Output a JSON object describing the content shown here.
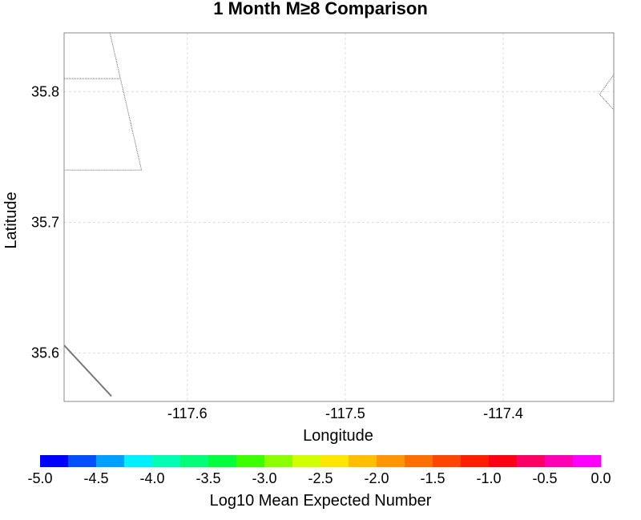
{
  "chart_data": {
    "type": "heatmap",
    "title": "1 Month M≥8 Comparison",
    "xlabel": "Longitude",
    "ylabel": "Latitude",
    "xlim": [
      -117.678,
      -117.33
    ],
    "ylim": [
      35.563,
      35.845
    ],
    "x_ticks": [
      -117.6,
      -117.5,
      -117.4
    ],
    "x_tick_labels": [
      "-117.6",
      "-117.5",
      "-117.4"
    ],
    "y_ticks": [
      35.6,
      35.7,
      35.8
    ],
    "y_tick_labels": [
      "35.6",
      "35.7",
      "35.8"
    ],
    "grid": true,
    "boundaries": [
      {
        "name": "fault-line",
        "style": "solid",
        "points": [
          [
            -117.678,
            35.606
          ],
          [
            -117.648,
            35.567
          ]
        ]
      },
      {
        "name": "county-boundary-upper",
        "style": "dotted",
        "points": [
          [
            -117.678,
            35.81
          ],
          [
            -117.643,
            35.81
          ]
        ]
      },
      {
        "name": "county-boundary-diagonal",
        "style": "dotted",
        "points": [
          [
            -117.649,
            35.845
          ],
          [
            -117.629,
            35.74
          ]
        ]
      },
      {
        "name": "county-boundary-lower",
        "style": "dotted",
        "points": [
          [
            -117.629,
            35.74
          ],
          [
            -117.678,
            35.74
          ]
        ]
      },
      {
        "name": "east-boundary",
        "style": "dotted",
        "points": [
          [
            -117.33,
            35.845
          ],
          [
            -117.33,
            35.813
          ],
          [
            -117.339,
            35.798
          ],
          [
            -117.33,
            35.786
          ]
        ]
      }
    ],
    "colorbar": {
      "label": "Log10 Mean Expected Number",
      "min": -5.0,
      "max": 0.0,
      "tick_labels": [
        "-5.0",
        "-4.5",
        "-4.0",
        "-3.5",
        "-3.0",
        "-2.5",
        "-2.0",
        "-1.5",
        "-1.0",
        "-0.5",
        "0.0"
      ],
      "colors": [
        "#0000ff",
        "#0050ff",
        "#00a0ff",
        "#00f0ff",
        "#00ffb4",
        "#00ff78",
        "#00ff3c",
        "#3cff00",
        "#8cff00",
        "#d2ff00",
        "#ffe600",
        "#ffbe00",
        "#ff9600",
        "#ff6e00",
        "#ff4600",
        "#ff1e00",
        "#ff0014",
        "#ff0064",
        "#ff00b4",
        "#ff00ff"
      ]
    }
  }
}
